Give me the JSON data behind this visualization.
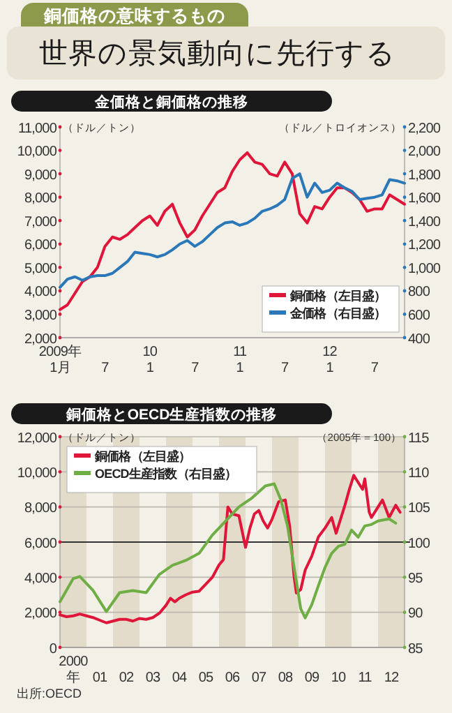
{
  "chart_data": [
    {
      "type": "other",
      "title": "銅価格の意味するもの",
      "subtitle": "世界の景気動向に先行する"
    },
    {
      "type": "line",
      "title": "金価格と銅価格の推移",
      "ylabel": "（ドル／トン）",
      "y2label": "（ドル／トロイオンス）",
      "xlim": [
        "2009-01",
        "2012-11"
      ],
      "xticks": [
        {
          "value": "2009-01",
          "label": "2009年\n1月"
        },
        {
          "value": "2009-07",
          "label": "7"
        },
        {
          "value": "2010-01",
          "label": "10\n1"
        },
        {
          "value": "2010-07",
          "label": "7"
        },
        {
          "value": "2011-01",
          "label": "11\n1"
        },
        {
          "value": "2011-07",
          "label": "7"
        },
        {
          "value": "2012-01",
          "label": "12\n1"
        },
        {
          "value": "2012-07",
          "label": "7"
        }
      ],
      "ylim": [
        2000,
        11000
      ],
      "yticks": [
        {
          "value": 2000,
          "label": "2,000"
        },
        {
          "value": 3000,
          "label": "3,000"
        },
        {
          "value": 4000,
          "label": "4,000"
        },
        {
          "value": 5000,
          "label": "5,000"
        },
        {
          "value": 6000,
          "label": "6,000"
        },
        {
          "value": 7000,
          "label": "7,000"
        },
        {
          "value": 8000,
          "label": "8,000"
        },
        {
          "value": 9000,
          "label": "9,000"
        },
        {
          "value": 10000,
          "label": "10,000"
        },
        {
          "value": 11000,
          "label": "11,000"
        }
      ],
      "y2lim": [
        400,
        2200
      ],
      "y2ticks": [
        400,
        600,
        800,
        {
          "value": 1000,
          "label": "1,000"
        },
        {
          "value": 1200,
          "label": "1,200"
        },
        {
          "value": 1400,
          "label": "1,400"
        },
        {
          "value": 1600,
          "label": "1,600"
        },
        {
          "value": 1800,
          "label": "1,800"
        },
        {
          "value": 2000,
          "label": "2,000"
        },
        {
          "value": 2200,
          "label": "2,200"
        }
      ],
      "legend": "bottom right",
      "x": [
        "2009-01",
        "2009-02",
        "2009-03",
        "2009-04",
        "2009-05",
        "2009-06",
        "2009-07",
        "2009-08",
        "2009-09",
        "2009-10",
        "2009-11",
        "2009-12",
        "2010-01",
        "2010-02",
        "2010-03",
        "2010-04",
        "2010-05",
        "2010-06",
        "2010-07",
        "2010-08",
        "2010-09",
        "2010-10",
        "2010-11",
        "2010-12",
        "2011-01",
        "2011-02",
        "2011-03",
        "2011-04",
        "2011-05",
        "2011-06",
        "2011-07",
        "2011-08",
        "2011-09",
        "2011-10",
        "2011-11",
        "2011-12",
        "2012-01",
        "2012-02",
        "2012-03",
        "2012-04",
        "2012-05",
        "2012-06",
        "2012-07",
        "2012-08",
        "2012-09",
        "2012-10",
        "2012-11"
      ],
      "series": [
        {
          "name": "銅価格（左目盛）",
          "color": "#e0153a",
          "values": [
            3200,
            3400,
            3900,
            4400,
            4600,
            5000,
            5900,
            6300,
            6200,
            6400,
            6700,
            7000,
            7200,
            6800,
            7400,
            7700,
            6900,
            6300,
            6600,
            7200,
            7700,
            8200,
            8400,
            9100,
            9600,
            9900,
            9500,
            9400,
            9000,
            8900,
            9500,
            9000,
            7300,
            6900,
            7600,
            7500,
            8000,
            8400,
            8400,
            8200,
            7900,
            7400,
            7500,
            7500,
            8100,
            7900,
            7700
          ]
        },
        {
          "name": "金価格（右目盛）",
          "color": "#2a78b8",
          "axis": "y2",
          "values": [
            830,
            900,
            920,
            890,
            920,
            930,
            930,
            950,
            1000,
            1050,
            1130,
            1120,
            1110,
            1090,
            1110,
            1150,
            1200,
            1230,
            1180,
            1220,
            1280,
            1340,
            1380,
            1390,
            1360,
            1380,
            1420,
            1480,
            1500,
            1530,
            1580,
            1760,
            1800,
            1600,
            1720,
            1640,
            1660,
            1720,
            1680,
            1650,
            1580,
            1590,
            1600,
            1620,
            1750,
            1740,
            1720
          ]
        }
      ]
    },
    {
      "type": "line",
      "title": "銅価格とOECD生産指数の推移",
      "ylabel": "（ドル／トン）",
      "y2label": "（2005年＝100）",
      "xlim": [
        "2000-01",
        "2013-01"
      ],
      "xticks": [
        {
          "value": "2000-07",
          "label": "2000\n年"
        },
        {
          "value": "2001-07",
          "label": "01"
        },
        {
          "value": "2002-07",
          "label": "02"
        },
        {
          "value": "2003-07",
          "label": "03"
        },
        {
          "value": "2004-07",
          "label": "04"
        },
        {
          "value": "2005-07",
          "label": "05"
        },
        {
          "value": "2006-07",
          "label": "06"
        },
        {
          "value": "2007-07",
          "label": "07"
        },
        {
          "value": "2008-07",
          "label": "08"
        },
        {
          "value": "2009-07",
          "label": "09"
        },
        {
          "value": "2010-07",
          "label": "10"
        },
        {
          "value": "2011-07",
          "label": "11"
        },
        {
          "value": "2012-07",
          "label": "12"
        }
      ],
      "ylim": [
        0,
        12000
      ],
      "yticks": [
        0,
        {
          "value": 2000,
          "label": "2,000"
        },
        {
          "value": 4000,
          "label": "4,000"
        },
        {
          "value": 6000,
          "label": "6,000"
        },
        {
          "value": 8000,
          "label": "8,000"
        },
        {
          "value": 10000,
          "label": "10,000"
        },
        {
          "value": 12000,
          "label": "12,000"
        }
      ],
      "y2lim": [
        85,
        115
      ],
      "y2ticks": [
        85,
        90,
        95,
        100,
        105,
        110,
        115
      ],
      "grid": "y",
      "legend": "top left",
      "ref_lines": [
        {
          "axis": "y2",
          "value": 100,
          "color": "#333333"
        }
      ],
      "bands": [
        {
          "axis": "x",
          "from": "2000-01",
          "to": "2001-01",
          "color": "#e4dccb"
        },
        {
          "axis": "x",
          "from": "2002-01",
          "to": "2003-01",
          "color": "#e4dccb"
        },
        {
          "axis": "x",
          "from": "2004-01",
          "to": "2005-01",
          "color": "#e4dccb"
        },
        {
          "axis": "x",
          "from": "2006-01",
          "to": "2007-01",
          "color": "#e4dccb"
        },
        {
          "axis": "x",
          "from": "2008-01",
          "to": "2009-01",
          "color": "#e4dccb"
        },
        {
          "axis": "x",
          "from": "2010-01",
          "to": "2011-01",
          "color": "#e4dccb"
        },
        {
          "axis": "x",
          "from": "2012-01",
          "to": "2013-01",
          "color": "#e4dccb"
        }
      ],
      "annotations": [
        "出所:OECD"
      ],
      "series": [
        {
          "name": "銅価格（左目盛）",
          "color": "#e0153a",
          "x": [
            "2000-01",
            "2000-04",
            "2000-07",
            "2000-10",
            "2001-01",
            "2001-04",
            "2001-07",
            "2001-10",
            "2002-01",
            "2002-04",
            "2002-07",
            "2002-10",
            "2003-01",
            "2003-04",
            "2003-07",
            "2003-10",
            "2004-01",
            "2004-03",
            "2004-05",
            "2004-07",
            "2004-10",
            "2005-01",
            "2005-04",
            "2005-07",
            "2005-10",
            "2006-01",
            "2006-03",
            "2006-05",
            "2006-07",
            "2006-10",
            "2007-01",
            "2007-03",
            "2007-05",
            "2007-07",
            "2007-09",
            "2007-11",
            "2008-01",
            "2008-04",
            "2008-07",
            "2008-09",
            "2008-11",
            "2008-12",
            "2009-02",
            "2009-04",
            "2009-07",
            "2009-10",
            "2010-01",
            "2010-04",
            "2010-06",
            "2010-08",
            "2010-10",
            "2010-12",
            "2011-02",
            "2011-04",
            "2011-06",
            "2011-07",
            "2011-09",
            "2011-10",
            "2012-01",
            "2012-03",
            "2012-06",
            "2012-09",
            "2012-11"
          ],
          "values": [
            1850,
            1750,
            1800,
            1900,
            1800,
            1700,
            1550,
            1400,
            1500,
            1600,
            1600,
            1500,
            1650,
            1600,
            1700,
            1950,
            2400,
            2800,
            2600,
            2800,
            3000,
            3150,
            3200,
            3600,
            4000,
            4700,
            5000,
            8000,
            7600,
            7500,
            5700,
            6800,
            7600,
            7800,
            7200,
            6800,
            7300,
            8300,
            8400,
            6900,
            4000,
            3100,
            3300,
            4400,
            5200,
            6300,
            6800,
            7400,
            6500,
            7300,
            8100,
            9000,
            9800,
            9400,
            9000,
            9600,
            7700,
            7400,
            8000,
            8400,
            7400,
            8100,
            7700
          ]
        },
        {
          "name": "OECD生産指数（右目盛）",
          "color": "#6fae45",
          "axis": "y2",
          "x": [
            "2000-01",
            "2000-07",
            "2000-10",
            "2001-04",
            "2001-10",
            "2002-04",
            "2002-10",
            "2003-04",
            "2003-10",
            "2004-04",
            "2004-10",
            "2005-04",
            "2005-10",
            "2006-04",
            "2006-10",
            "2007-04",
            "2007-10",
            "2008-02",
            "2008-05",
            "2008-08",
            "2008-11",
            "2009-02",
            "2009-04",
            "2009-07",
            "2009-10",
            "2010-01",
            "2010-04",
            "2010-07",
            "2010-10",
            "2011-01",
            "2011-04",
            "2011-07",
            "2011-10",
            "2012-01",
            "2012-06",
            "2012-09"
          ],
          "values": [
            91.5,
            94.8,
            95.1,
            93.1,
            90.1,
            92.8,
            93.1,
            92.8,
            95.4,
            96.7,
            97.4,
            98.4,
            101.0,
            103.0,
            105.0,
            106.3,
            108.0,
            108.3,
            106.0,
            102.3,
            96.4,
            90.5,
            89.2,
            91.1,
            93.8,
            96.4,
            98.4,
            99.4,
            99.7,
            101.7,
            100.7,
            102.3,
            102.5,
            103.0,
            103.3,
            102.7
          ]
        }
      ]
    }
  ]
}
